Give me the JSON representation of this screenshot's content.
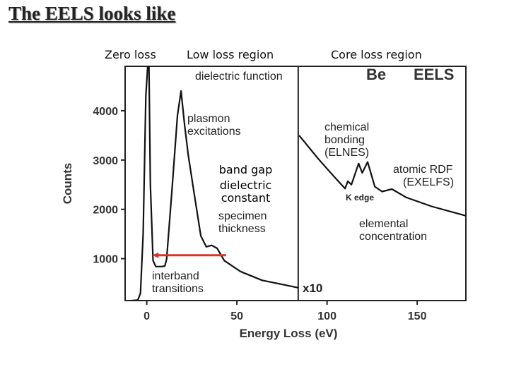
{
  "slide": {
    "title": "The EELS looks like",
    "regions": [
      "Zero loss",
      "Low loss region",
      "Core loss region"
    ]
  },
  "chart_data": {
    "type": "line",
    "title": "Be EELS",
    "title_parts": [
      "Be",
      "EELS"
    ],
    "xlabel": "Energy Loss (eV)",
    "ylabel": "Counts",
    "xlim": [
      -12,
      177
    ],
    "ylim": [
      150,
      4900
    ],
    "xticks": [
      0,
      50,
      100,
      150
    ],
    "yticks": [
      1000,
      2000,
      3000,
      4000
    ],
    "split_at": 84,
    "split_label": "x10",
    "series": [
      {
        "name": "low loss",
        "x": [
          -8.6,
          -5,
          -3.5,
          -2,
          -0.5,
          0.5,
          1.2,
          2,
          3.5,
          5,
          8,
          10,
          11,
          14,
          17,
          19,
          21,
          23,
          26,
          30,
          33,
          36,
          39,
          43,
          52,
          64,
          84
        ],
        "y": [
          150,
          160,
          300,
          1500,
          4300,
          4900,
          4900,
          2500,
          960,
          840,
          840,
          850,
          990,
          2400,
          3900,
          4400,
          3700,
          3100,
          2390,
          1460,
          1240,
          1270,
          1210,
          960,
          740,
          560,
          410
        ]
      },
      {
        "name": "core loss (x10)",
        "x": [
          84.5,
          95,
          103,
          110,
          111.5,
          113.5,
          117.5,
          119.5,
          122.5,
          126.5,
          130.5,
          136,
          144,
          158,
          177
        ],
        "y": [
          3500,
          3030,
          2700,
          2420,
          2570,
          2500,
          2930,
          2740,
          2960,
          2460,
          2360,
          2410,
          2240,
          2060,
          1870
        ]
      }
    ],
    "arrow": {
      "from": [
        44,
        1070
      ],
      "to": [
        3,
        1070
      ],
      "color": "#d9342b"
    },
    "annotations": {
      "dielectric_function": "dielectric function",
      "plasmon": [
        "plasmon",
        "excitations"
      ],
      "band_gap": [
        "band gap",
        "dielectric",
        "constant"
      ],
      "specimen": [
        "specimen",
        "thickness"
      ],
      "interband": [
        "interband",
        "transitions"
      ],
      "chemical": [
        "chemical",
        "bonding",
        "(ELNES)"
      ],
      "k_edge": "K  edge",
      "atomic": [
        "atomic RDF",
        "(EXELFS)"
      ],
      "elemental": [
        "elemental",
        "concentration"
      ]
    }
  }
}
